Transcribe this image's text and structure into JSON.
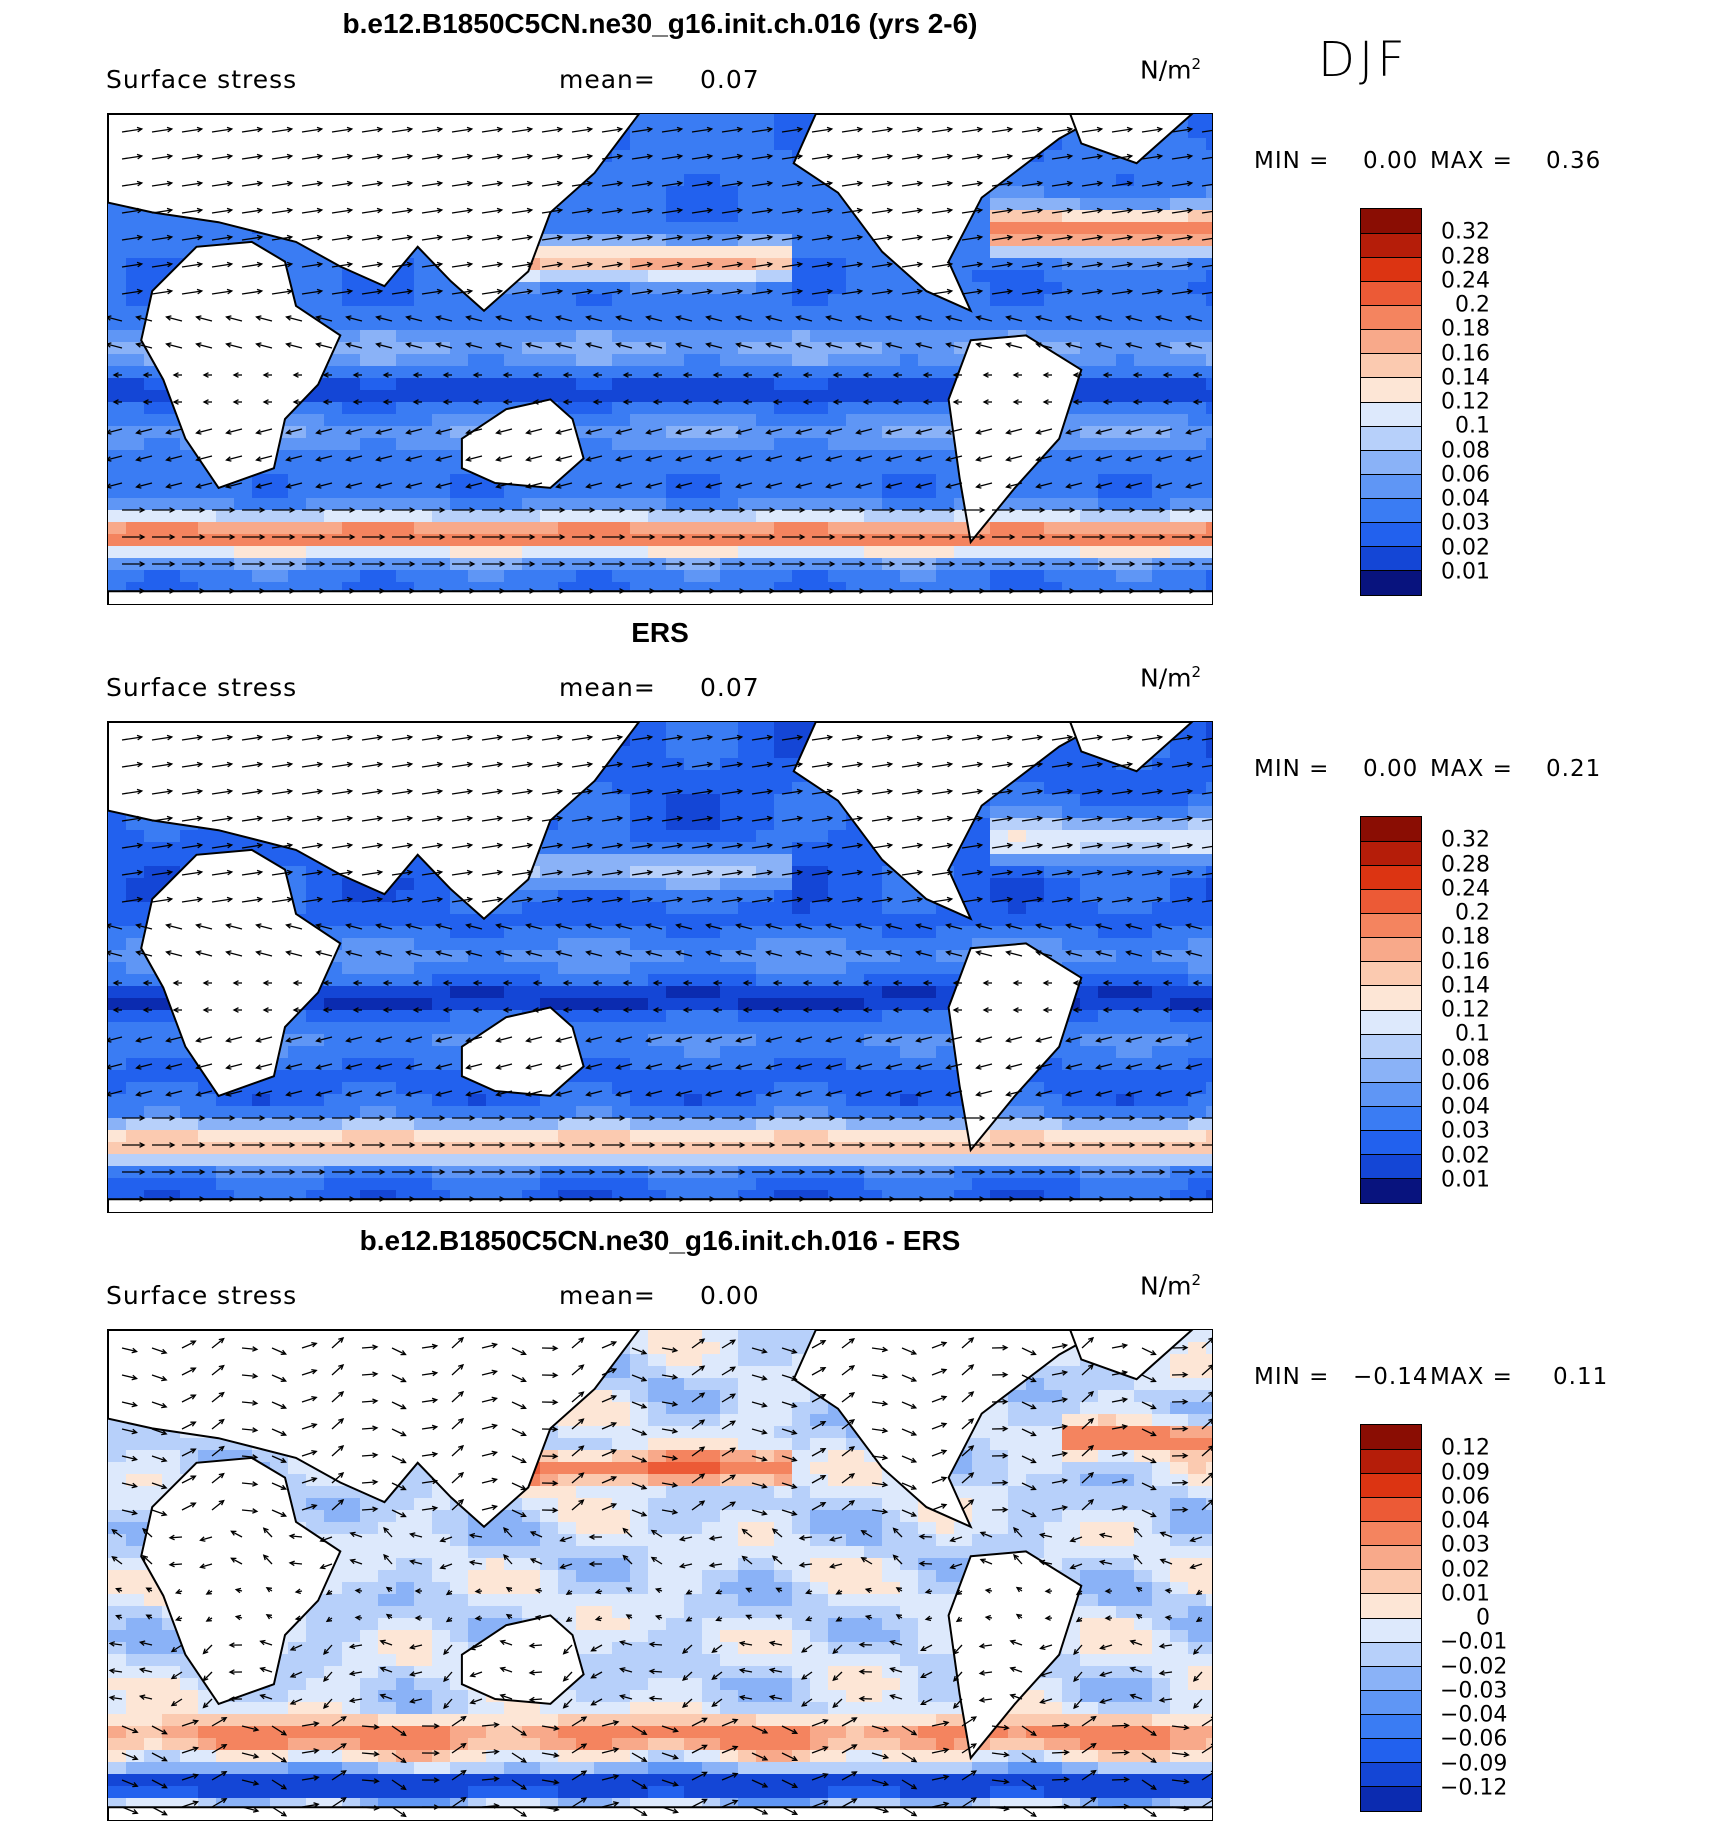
{
  "figure": {
    "season": "DJF",
    "var_label": "Surface stress",
    "mean_label": "mean=",
    "unit_base": "N/m",
    "unit_exp": "2",
    "min_label": "MIN =",
    "max_label": "MAX ="
  },
  "colors": {
    "full_scale": [
      "#08137e",
      "#0b2bb0",
      "#1446d6",
      "#2261ee",
      "#3a7cf3",
      "#5f96f5",
      "#8ab2f7",
      "#b7d0fa",
      "#dde9fc",
      "#fde6d6",
      "#fbcab0",
      "#f8a98a",
      "#f4845f",
      "#ec5a36",
      "#dc3412",
      "#b51d09",
      "#8a0d03"
    ],
    "land": "#ffffff",
    "coast": "#000000",
    "arrow": "#000000"
  },
  "chart_data": [
    {
      "type": "heatmap",
      "id": "model",
      "title": "b.e12.B1850C5CN.ne30_g16.init.ch.016 (yrs 2-6)",
      "variable": "Surface stress",
      "mean": "0.07",
      "min": "0.00",
      "max": "0.36",
      "units": "N/m2",
      "lon_range": [
        0,
        360
      ],
      "lat_range": [
        -70,
        90
      ],
      "colorbar_levels": [
        "0.32",
        "0.28",
        "0.24",
        "0.2",
        "0.18",
        "0.16",
        "0.14",
        "0.12",
        "0.1",
        "0.08",
        "0.06",
        "0.04",
        "0.03",
        "0.02",
        "0.01"
      ],
      "overlay": "wind stress vectors"
    },
    {
      "type": "heatmap",
      "id": "obs",
      "title": "ERS",
      "variable": "Surface stress",
      "mean": "0.07",
      "min": "0.00",
      "max": "0.21",
      "units": "N/m2",
      "lon_range": [
        0,
        360
      ],
      "lat_range": [
        -70,
        90
      ],
      "colorbar_levels": [
        "0.32",
        "0.28",
        "0.24",
        "0.2",
        "0.18",
        "0.16",
        "0.14",
        "0.12",
        "0.1",
        "0.08",
        "0.06",
        "0.04",
        "0.03",
        "0.02",
        "0.01"
      ],
      "overlay": "wind stress vectors"
    },
    {
      "type": "heatmap",
      "id": "diff",
      "title": "b.e12.B1850C5CN.ne30_g16.init.ch.016 - ERS",
      "variable": "Surface stress",
      "mean": "0.00",
      "min": "−0.14",
      "max": "0.11",
      "units": "N/m2",
      "lon_range": [
        0,
        360
      ],
      "lat_range": [
        -70,
        90
      ],
      "colorbar_levels": [
        "0.12",
        "0.09",
        "0.06",
        "0.04",
        "0.03",
        "0.02",
        "0.01",
        "0",
        "−0.01",
        "−0.02",
        "−0.03",
        "−0.04",
        "−0.06",
        "−0.09",
        "−0.12"
      ],
      "overlay": "wind stress difference vectors"
    }
  ]
}
